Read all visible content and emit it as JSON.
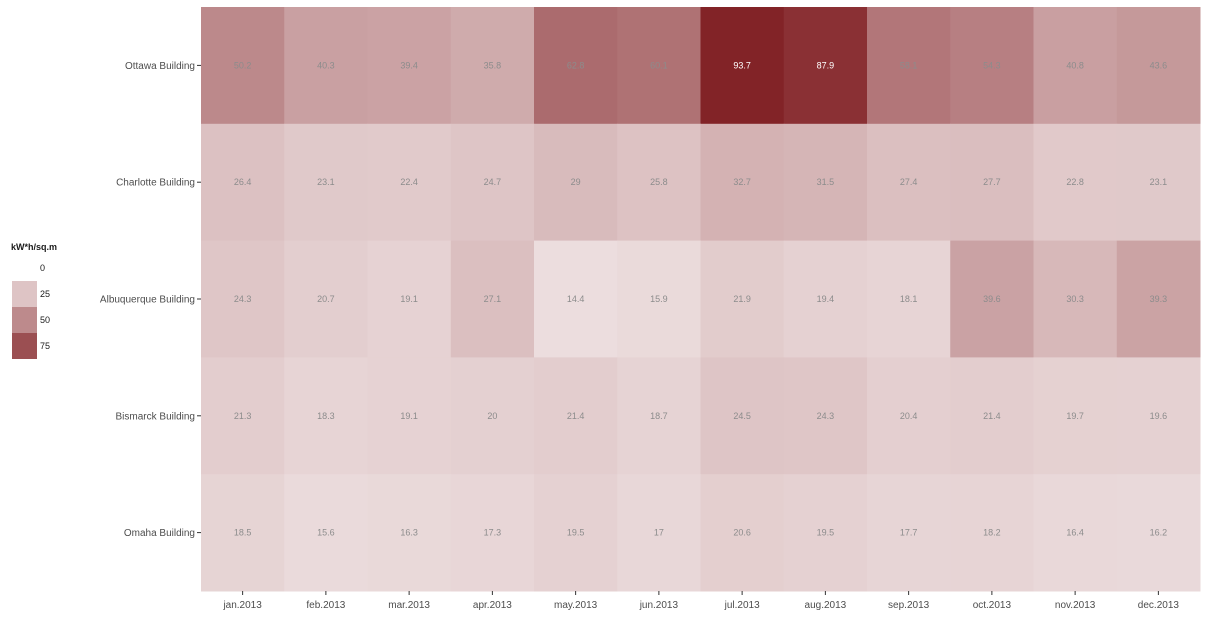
{
  "chart_data": {
    "type": "heatmap",
    "x_categories": [
      "jan.2013",
      "feb.2013",
      "mar.2013",
      "apr.2013",
      "may.2013",
      "jun.2013",
      "jul.2013",
      "aug.2013",
      "sep.2013",
      "oct.2013",
      "nov.2013",
      "dec.2013"
    ],
    "y_categories": [
      "Ottawa Building",
      "Charlotte Building",
      "Albuquerque Building",
      "Bismarck Building",
      "Omaha Building"
    ],
    "values": [
      [
        50.2,
        40.3,
        39.4,
        35.8,
        62.8,
        60.1,
        93.7,
        87.9,
        58.1,
        54.3,
        40.8,
        43.6
      ],
      [
        26.4,
        23.1,
        22.4,
        24.7,
        29,
        25.8,
        32.7,
        31.5,
        27.4,
        27.7,
        22.8,
        23.1
      ],
      [
        24.3,
        20.7,
        19.1,
        27.1,
        14.4,
        15.9,
        21.9,
        19.4,
        18.1,
        39.6,
        30.3,
        39.3
      ],
      [
        21.3,
        18.3,
        19.1,
        20,
        21.4,
        18.7,
        24.5,
        24.3,
        20.4,
        21.4,
        19.7,
        19.6
      ],
      [
        18.5,
        15.6,
        16.3,
        17.3,
        19.5,
        17,
        20.6,
        19.5,
        17.7,
        18.2,
        16.4,
        16.2
      ]
    ],
    "color_low": "#ffffff",
    "color_high": "#7a1418",
    "value_range": [
      0,
      100
    ],
    "legend": {
      "title": "kW*h/sq.m",
      "placement": "left",
      "breaks": [
        0,
        25,
        50,
        75
      ]
    }
  }
}
